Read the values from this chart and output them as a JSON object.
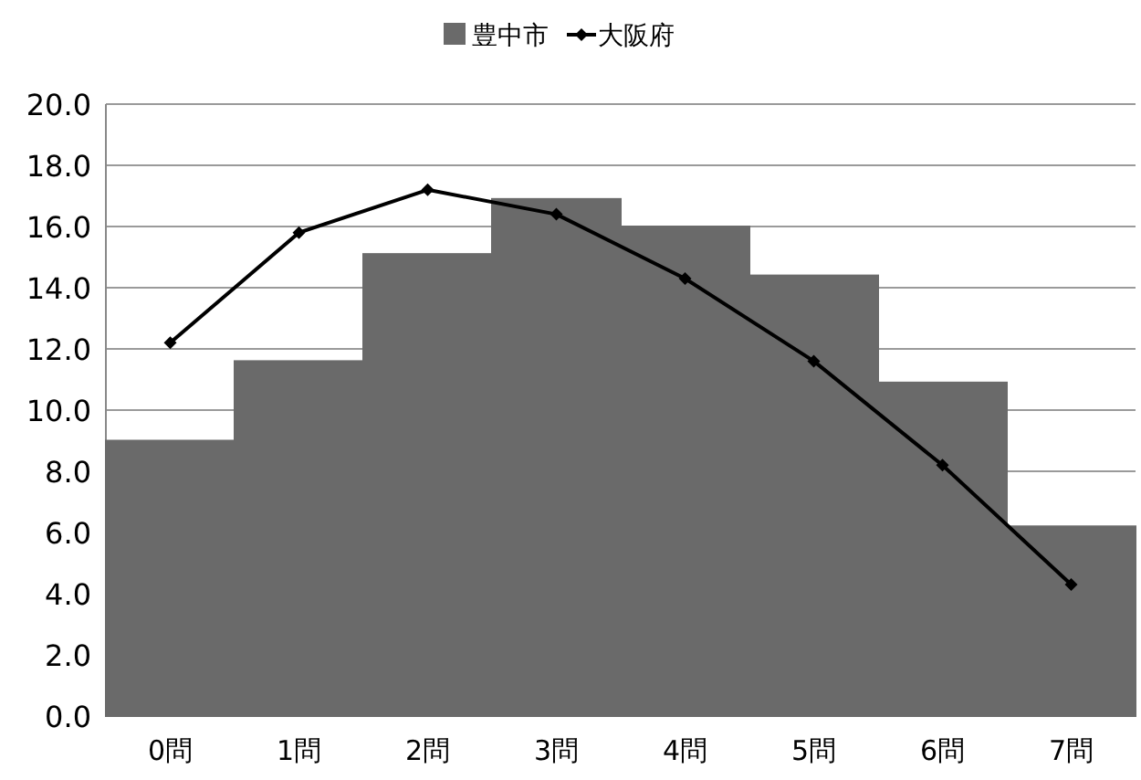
{
  "chart_data": {
    "type": "bar",
    "categories": [
      "0問",
      "1問",
      "2問",
      "3問",
      "4問",
      "5問",
      "6問",
      "7問"
    ],
    "series": [
      {
        "name": "豊中市",
        "color": "#6a6a6a",
        "values": [
          9.0,
          11.6,
          15.1,
          16.9,
          16.0,
          14.4,
          10.9,
          6.2
        ]
      },
      {
        "name": "大阪府",
        "type": "line",
        "color": "#000000",
        "values": [
          12.2,
          15.8,
          17.2,
          16.4,
          14.3,
          11.6,
          8.2,
          4.3
        ]
      }
    ],
    "ylim": [
      0,
      20
    ],
    "yticks": [
      {
        "value": 0,
        "label": "0.0"
      },
      {
        "value": 2,
        "label": "2.0"
      },
      {
        "value": 4,
        "label": "4.0"
      },
      {
        "value": 6,
        "label": "6.0"
      },
      {
        "value": 8,
        "label": "8.0"
      },
      {
        "value": 10,
        "label": "10.0"
      },
      {
        "value": 12,
        "label": "12.0"
      },
      {
        "value": 14,
        "label": "14.0"
      },
      {
        "value": 16,
        "label": "16.0"
      },
      {
        "value": 18,
        "label": "18.0"
      },
      {
        "value": 20,
        "label": "20.0"
      }
    ],
    "grid": "y",
    "legend": "top",
    "marker": "diamond",
    "line_style": "solid"
  }
}
